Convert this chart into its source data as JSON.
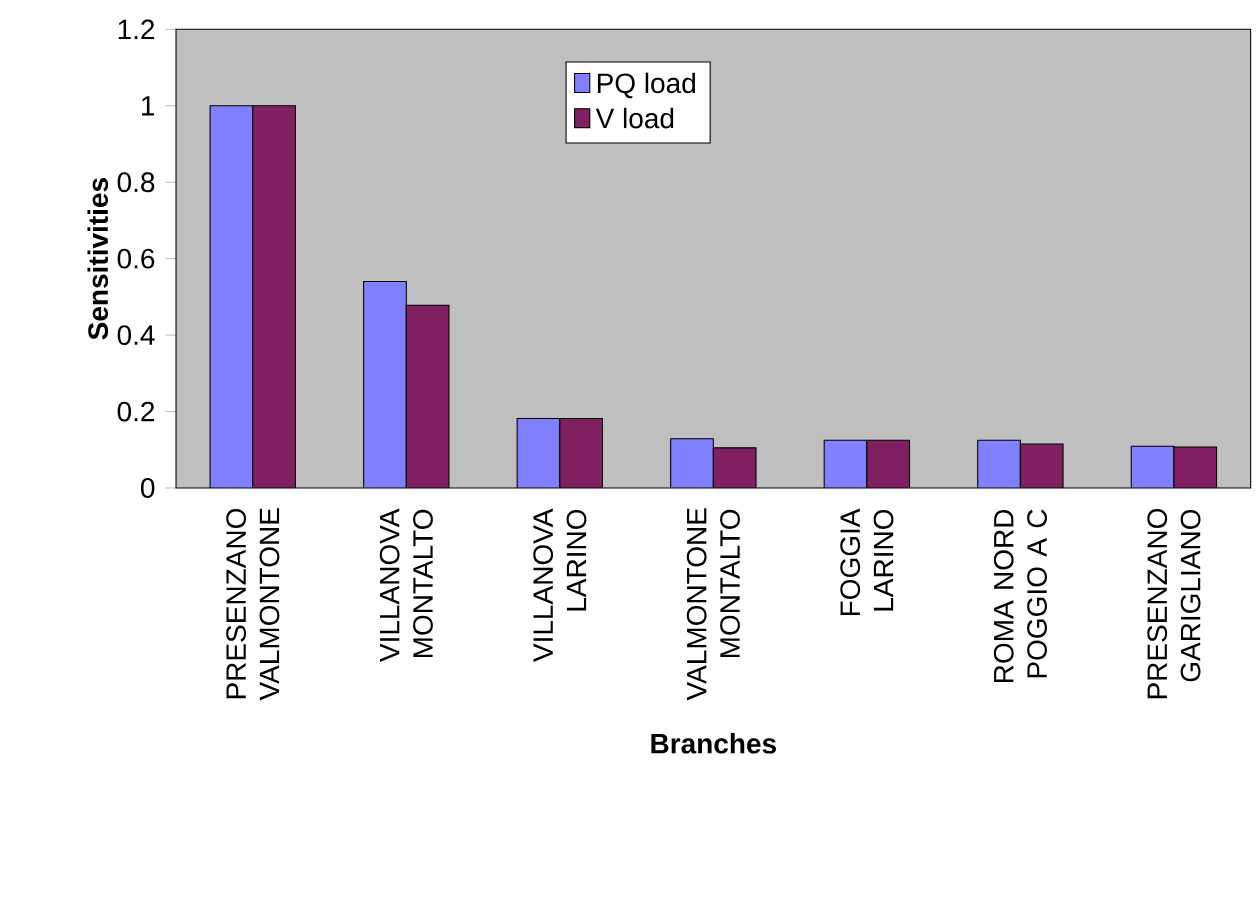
{
  "chart_data": {
    "type": "bar",
    "xlabel": "**Branches**",
    "ylabel": "**Sensitivities**",
    "categories": [
      "PRESENZANO VALMONTONE",
      "VILLANOVA MONTALTO",
      "VILLANOVA LARINO",
      "VALMONTONE MONTALTO",
      "FOGGIA LARINO",
      "ROMA NORD POGGIO A C",
      "PRESENZANO GARIGLIANO"
    ],
    "series": [
      {
        "name": "PQ load",
        "color": "#8080ff",
        "values": [
          1.0,
          0.54,
          0.182,
          0.129,
          0.125,
          0.125,
          0.109
        ]
      },
      {
        "name": "V load",
        "color": "#802060",
        "values": [
          1.0,
          0.478,
          0.182,
          0.105,
          0.125,
          0.115,
          0.107
        ]
      }
    ],
    "ylim": [
      0,
      1.2
    ],
    "yticks": [
      0,
      0.2,
      0.4,
      0.6,
      0.8,
      1,
      1.2
    ],
    "grid": false,
    "legend": "top"
  }
}
